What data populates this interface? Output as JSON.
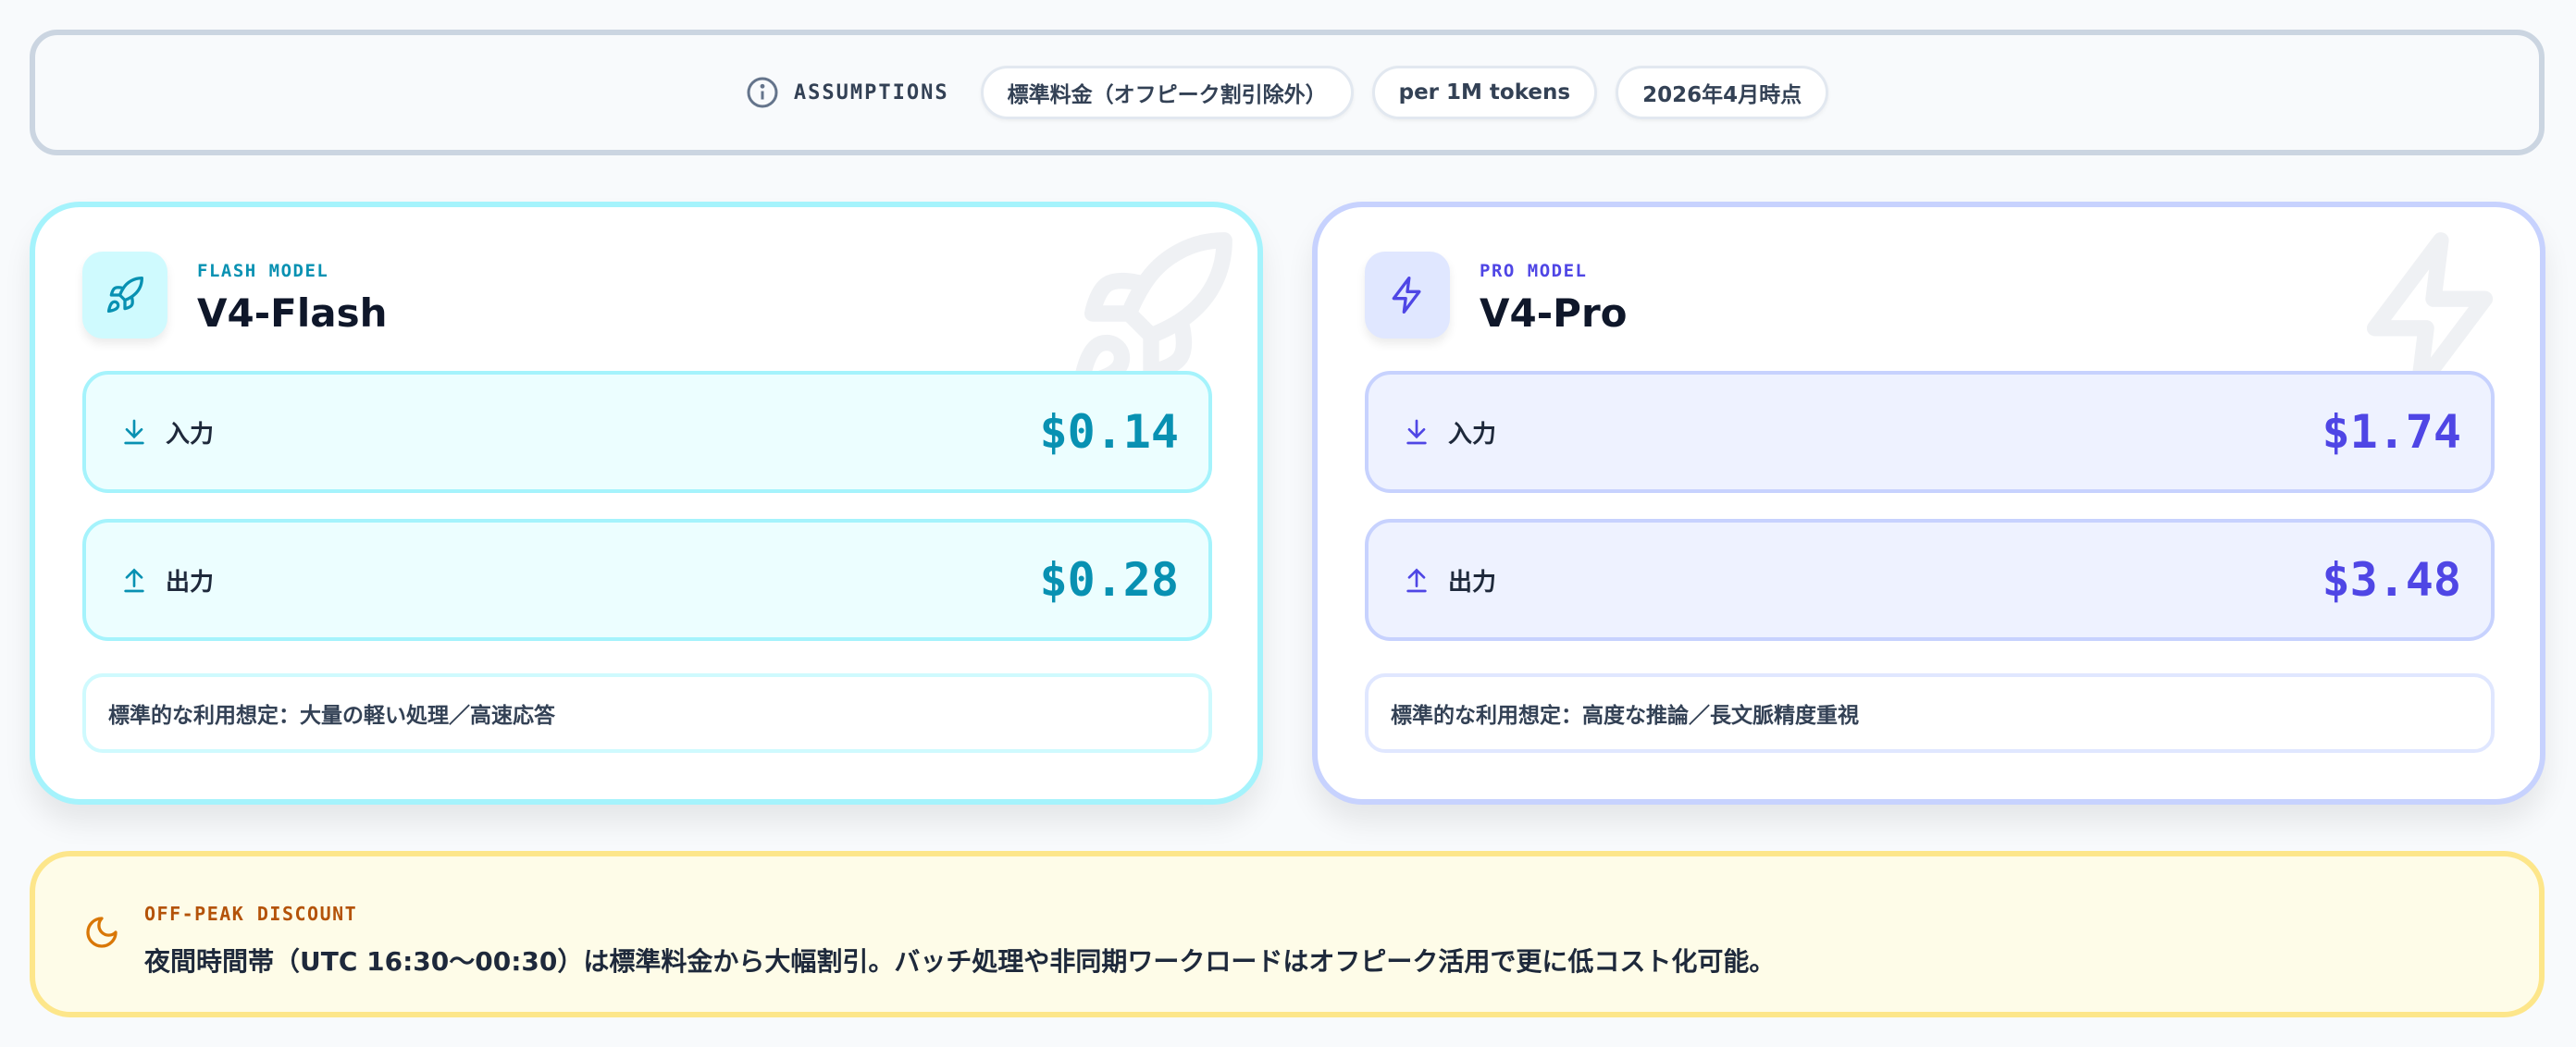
{
  "assumptions": {
    "label": "ASSUMPTIONS",
    "icon": "info-icon",
    "pills": [
      "標準料金（オフピーク割引除外）",
      "per 1M tokens",
      "2026年4月時点"
    ]
  },
  "models": [
    {
      "kind": "FLASH MODEL",
      "name": "V4-Flash",
      "icon": "rocket-icon",
      "accent": "#0891b2",
      "input_label": "入力",
      "input_price": "$0.14",
      "output_label": "出力",
      "output_price": "$0.28",
      "note": "標準的な利用想定：大量の軽い処理／高速応答"
    },
    {
      "kind": "PRO MODEL",
      "name": "V4-Pro",
      "icon": "lightning-icon",
      "accent": "#4f46e5",
      "input_label": "入力",
      "input_price": "$1.74",
      "output_label": "出力",
      "output_price": "$3.48",
      "note": "標準的な利用想定：高度な推論／長文脈精度重視"
    }
  ],
  "offpeak": {
    "icon": "moon-icon",
    "label": "OFF-PEAK DISCOUNT",
    "text": "夜間時間帯（UTC 16:30〜00:30）は標準料金から大幅割引。バッチ処理や非同期ワークロードはオフピーク活用で更に低コスト化可能。",
    "accent": "#d97706"
  }
}
